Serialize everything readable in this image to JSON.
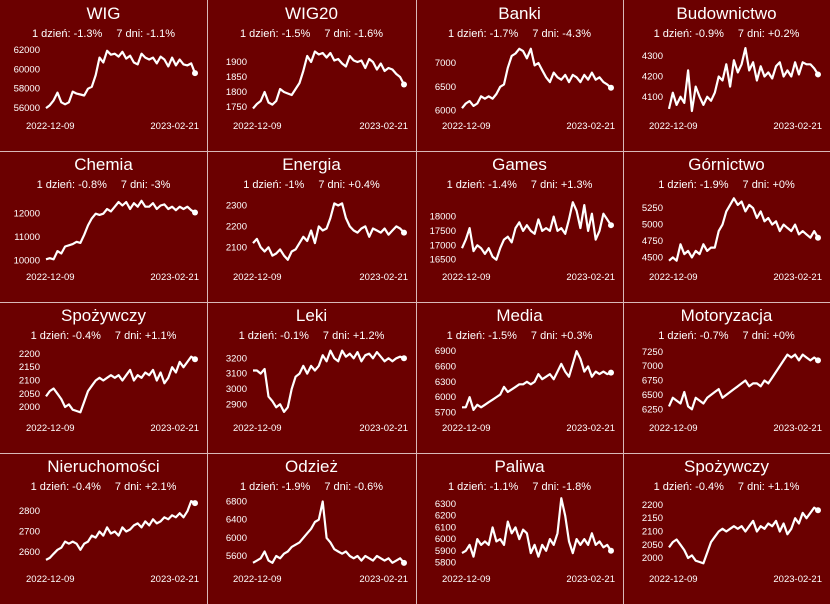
{
  "colors": {
    "background": "#6b0000",
    "line": "#ffffff",
    "separator": "#d9b8b8"
  },
  "chart_data": [
    {
      "type": "line",
      "title": "WIG",
      "day1": "1 dzień: -1.3%",
      "day7": "7 dni: -1.1%",
      "x_start": "2022-12-09",
      "x_end": "2023-02-21",
      "yticks": [
        56000,
        58000,
        60000,
        62000
      ],
      "ylim": [
        55500,
        62600
      ],
      "values": [
        56000,
        56300,
        56800,
        57600,
        56600,
        56400,
        56600,
        57700,
        57500,
        57400,
        57300,
        58000,
        58200,
        59400,
        61200,
        60700,
        61900,
        61500,
        61600,
        61300,
        61800,
        61100,
        61400,
        60700,
        60500,
        61600,
        61200,
        61000,
        61200,
        60600,
        61300,
        61000,
        60300,
        61200,
        60400,
        61000,
        60500,
        60400,
        60600,
        59600
      ]
    },
    {
      "type": "line",
      "title": "WIG20",
      "day1": "1 dzień: -1.5%",
      "day7": "7 dni: -1.6%",
      "x_start": "2022-12-09",
      "x_end": "2023-02-21",
      "yticks": [
        1750,
        1800,
        1850,
        1900
      ],
      "ylim": [
        1730,
        1960
      ],
      "values": [
        1745,
        1760,
        1770,
        1800,
        1765,
        1758,
        1770,
        1810,
        1800,
        1795,
        1790,
        1810,
        1830,
        1870,
        1920,
        1900,
        1935,
        1925,
        1930,
        1915,
        1930,
        1905,
        1910,
        1895,
        1885,
        1920,
        1905,
        1900,
        1905,
        1880,
        1910,
        1900,
        1875,
        1895,
        1870,
        1880,
        1875,
        1860,
        1850,
        1825
      ]
    },
    {
      "type": "line",
      "title": "Banki",
      "day1": "1 dzień: -1.7%",
      "day7": "7 dni: -4.3%",
      "x_start": "2022-12-09",
      "x_end": "2023-02-21",
      "yticks": [
        6000,
        6500,
        7000
      ],
      "ylim": [
        5950,
        7400
      ],
      "values": [
        6050,
        6150,
        6200,
        6100,
        6150,
        6300,
        6250,
        6300,
        6250,
        6350,
        6500,
        6550,
        6900,
        7150,
        7200,
        7300,
        7250,
        7100,
        7300,
        6950,
        7000,
        6850,
        6700,
        6600,
        6800,
        6700,
        6650,
        6750,
        6600,
        6750,
        6700,
        6600,
        6750,
        6650,
        6800,
        6650,
        6700,
        6600,
        6550,
        6480
      ]
    },
    {
      "type": "line",
      "title": "Budownictwo",
      "day1": "1 dzień: -0.9%",
      "day7": "7 dni: +0.2%",
      "x_start": "2022-12-09",
      "x_end": "2023-02-21",
      "yticks": [
        4100,
        4200,
        4300
      ],
      "ylim": [
        4020,
        4360
      ],
      "values": [
        4040,
        4120,
        4060,
        4100,
        4070,
        4230,
        4030,
        4150,
        4100,
        4060,
        4100,
        4080,
        4120,
        4200,
        4180,
        4260,
        4150,
        4280,
        4220,
        4260,
        4340,
        4230,
        4270,
        4180,
        4250,
        4200,
        4220,
        4190,
        4250,
        4270,
        4200,
        4230,
        4200,
        4270,
        4210,
        4270,
        4260,
        4260,
        4240,
        4210
      ]
    },
    {
      "type": "line",
      "title": "Chemia",
      "day1": "1 dzień: -0.8%",
      "day7": "7 dni: -3%",
      "x_start": "2022-12-09",
      "x_end": "2023-02-21",
      "yticks": [
        10000,
        11000,
        12000
      ],
      "ylim": [
        9850,
        12800
      ],
      "values": [
        10050,
        10100,
        10050,
        10400,
        10300,
        10600,
        10650,
        10700,
        10800,
        10750,
        11100,
        11500,
        11800,
        12000,
        11950,
        12000,
        12200,
        12100,
        12300,
        12500,
        12350,
        12500,
        12200,
        12450,
        12300,
        12550,
        12300,
        12300,
        12450,
        12200,
        12350,
        12400,
        12200,
        12300,
        12150,
        12300,
        12200,
        12300,
        12150,
        12050
      ]
    },
    {
      "type": "line",
      "title": "Energia",
      "day1": "1 dzień: -1%",
      "day7": "7 dni: +0.4%",
      "x_start": "2022-12-09",
      "x_end": "2023-02-21",
      "yticks": [
        2100,
        2200,
        2300
      ],
      "ylim": [
        2020,
        2350
      ],
      "values": [
        2120,
        2140,
        2100,
        2080,
        2100,
        2060,
        2070,
        2090,
        2060,
        2040,
        2080,
        2090,
        2120,
        2150,
        2130,
        2180,
        2120,
        2200,
        2180,
        2190,
        2240,
        2310,
        2300,
        2310,
        2240,
        2200,
        2180,
        2170,
        2190,
        2200,
        2150,
        2190,
        2180,
        2170,
        2190,
        2160,
        2180,
        2200,
        2190,
        2170
      ]
    },
    {
      "type": "line",
      "title": "Games",
      "day1": "1 dzień: -1.4%",
      "day7": "7 dni: +1.3%",
      "x_start": "2022-12-09",
      "x_end": "2023-02-21",
      "yticks": [
        16500,
        17000,
        17500,
        18000
      ],
      "ylim": [
        16350,
        18750
      ],
      "values": [
        16900,
        17200,
        17600,
        16800,
        17000,
        16900,
        16700,
        16900,
        16600,
        16500,
        16900,
        17200,
        17300,
        17100,
        17600,
        17800,
        17500,
        17700,
        17500,
        17400,
        17900,
        17500,
        17600,
        17500,
        18000,
        17500,
        17600,
        17400,
        17900,
        18500,
        18200,
        17600,
        18400,
        17500,
        18100,
        17200,
        17500,
        18100,
        17900,
        17700
      ]
    },
    {
      "type": "line",
      "title": "Górnictwo",
      "day1": "1 dzień: -1.9%",
      "day7": "7 dni: +0%",
      "x_start": "2022-12-09",
      "x_end": "2023-02-21",
      "yticks": [
        4500,
        4750,
        5000,
        5250
      ],
      "ylim": [
        4400,
        5450
      ],
      "values": [
        4450,
        4500,
        4450,
        4700,
        4550,
        4600,
        4500,
        4600,
        4550,
        4700,
        4600,
        4650,
        4650,
        4900,
        5000,
        5200,
        5300,
        5400,
        5300,
        5350,
        5200,
        5300,
        5250,
        5100,
        5200,
        5050,
        5100,
        5000,
        5050,
        4900,
        5000,
        4950,
        4900,
        5000,
        4850,
        4900,
        4850,
        4800,
        4900,
        4800
      ]
    },
    {
      "type": "line",
      "title": "Spożywczy",
      "day1": "1 dzień: -0.4%",
      "day7": "7 dni: +1.1%",
      "x_start": "2022-12-09",
      "x_end": "2023-02-21",
      "yticks": [
        2000,
        2050,
        2100,
        2150,
        2200
      ],
      "ylim": [
        1970,
        2230
      ],
      "values": [
        2040,
        2060,
        2070,
        2050,
        2030,
        2000,
        2010,
        1990,
        1985,
        1980,
        2020,
        2060,
        2080,
        2100,
        2110,
        2100,
        2110,
        2120,
        2110,
        2120,
        2100,
        2120,
        2140,
        2100,
        2120,
        2110,
        2130,
        2120,
        2140,
        2100,
        2130,
        2090,
        2110,
        2150,
        2130,
        2170,
        2150,
        2170,
        2190,
        2180
      ]
    },
    {
      "type": "line",
      "title": "Leki",
      "day1": "1 dzień: -0.1%",
      "day7": "7 dni: +1.2%",
      "x_start": "2022-12-09",
      "x_end": "2023-02-21",
      "yticks": [
        2900,
        3000,
        3100,
        3200
      ],
      "ylim": [
        2830,
        3280
      ],
      "values": [
        3120,
        3120,
        3100,
        3130,
        2950,
        2920,
        2880,
        2900,
        2850,
        2880,
        3000,
        3080,
        3100,
        3150,
        3100,
        3150,
        3120,
        3150,
        3220,
        3180,
        3250,
        3200,
        3180,
        3250,
        3210,
        3230,
        3200,
        3240,
        3180,
        3220,
        3230,
        3200,
        3240,
        3210,
        3180,
        3200,
        3180,
        3200,
        3210,
        3200
      ]
    },
    {
      "type": "line",
      "title": "Media",
      "day1": "1 dzień: -1.5%",
      "day7": "7 dni: +0.3%",
      "x_start": "2022-12-09",
      "x_end": "2023-02-21",
      "yticks": [
        5700,
        6000,
        6300,
        6600,
        6900
      ],
      "ylim": [
        5650,
        7000
      ],
      "values": [
        5800,
        5800,
        6000,
        5750,
        5850,
        5800,
        5850,
        5900,
        5950,
        6000,
        6050,
        6200,
        6100,
        6150,
        6200,
        6250,
        6250,
        6300,
        6250,
        6300,
        6450,
        6350,
        6400,
        6450,
        6350,
        6500,
        6650,
        6500,
        6400,
        6650,
        6900,
        6750,
        6500,
        6600,
        6400,
        6500,
        6450,
        6500,
        6450,
        6480
      ]
    },
    {
      "type": "line",
      "title": "Motoryzacja",
      "day1": "1 dzień: -0.7%",
      "day7": "7 dni: +0%",
      "x_start": "2022-12-09",
      "x_end": "2023-02-21",
      "yticks": [
        6250,
        6500,
        6750,
        7000,
        7250
      ],
      "ylim": [
        6150,
        7350
      ],
      "values": [
        6300,
        6450,
        6400,
        6350,
        6550,
        6300,
        6250,
        6450,
        6400,
        6350,
        6450,
        6500,
        6550,
        6600,
        6450,
        6500,
        6550,
        6600,
        6650,
        6700,
        6750,
        6650,
        6700,
        6700,
        6650,
        6750,
        6700,
        6800,
        6900,
        7000,
        7100,
        7200,
        7150,
        7200,
        7100,
        7200,
        7150,
        7100,
        7150,
        7100
      ]
    },
    {
      "type": "line",
      "title": "Nieruchomości",
      "day1": "1 dzień: -0.4%",
      "day7": "7 dni: +2.1%",
      "x_start": "2022-12-09",
      "x_end": "2023-02-21",
      "yticks": [
        2600,
        2700,
        2800
      ],
      "ylim": [
        2530,
        2870
      ],
      "values": [
        2560,
        2570,
        2590,
        2610,
        2620,
        2650,
        2640,
        2650,
        2640,
        2610,
        2640,
        2650,
        2680,
        2670,
        2700,
        2680,
        2720,
        2690,
        2700,
        2680,
        2720,
        2700,
        2710,
        2730,
        2740,
        2720,
        2750,
        2730,
        2760,
        2740,
        2750,
        2770,
        2760,
        2780,
        2770,
        2790,
        2770,
        2800,
        2850,
        2840
      ]
    },
    {
      "type": "line",
      "title": "Odzież",
      "day1": "1 dzień: -1.9%",
      "day7": "7 dni: -0.6%",
      "x_start": "2022-12-09",
      "x_end": "2023-02-21",
      "yticks": [
        5600,
        6000,
        6400,
        6800
      ],
      "ylim": [
        5380,
        6900
      ],
      "values": [
        5450,
        5500,
        5550,
        5700,
        5500,
        5450,
        5600,
        5550,
        5650,
        5700,
        5800,
        5850,
        5900,
        6000,
        6100,
        6200,
        6350,
        6400,
        6800,
        6000,
        5900,
        5750,
        5700,
        5650,
        5700,
        5600,
        5550,
        5600,
        5500,
        5600,
        5550,
        5500,
        5600,
        5550,
        5500,
        5550,
        5450,
        5500,
        5550,
        5450
      ]
    },
    {
      "type": "line",
      "title": "Paliwa",
      "day1": "1 dzień: -1.1%",
      "day7": "7 dni: -1.8%",
      "x_start": "2022-12-09",
      "x_end": "2023-02-21",
      "yticks": [
        5800,
        5900,
        6000,
        6100,
        6200,
        6300
      ],
      "ylim": [
        5770,
        6360
      ],
      "values": [
        5880,
        5900,
        5950,
        5850,
        6000,
        5950,
        5980,
        5950,
        6100,
        5980,
        6000,
        5950,
        6150,
        6050,
        6100,
        6000,
        6080,
        6050,
        5880,
        5950,
        5850,
        5950,
        5900,
        6000,
        5950,
        6050,
        6350,
        6200,
        5980,
        5880,
        6000,
        5950,
        6000,
        5950,
        6050,
        5950,
        5980,
        5930,
        5950,
        5900
      ]
    },
    {
      "type": "line",
      "title": "Spożywczy",
      "day1": "1 dzień: -0.4%",
      "day7": "7 dni: +1.1%",
      "x_start": "2022-12-09",
      "x_end": "2023-02-21",
      "yticks": [
        2000,
        2050,
        2100,
        2150,
        2200
      ],
      "ylim": [
        1970,
        2230
      ],
      "values": [
        2040,
        2060,
        2070,
        2050,
        2030,
        2000,
        2010,
        1990,
        1985,
        1980,
        2020,
        2060,
        2080,
        2100,
        2110,
        2100,
        2110,
        2120,
        2110,
        2120,
        2100,
        2120,
        2140,
        2100,
        2120,
        2110,
        2130,
        2120,
        2140,
        2100,
        2130,
        2090,
        2110,
        2150,
        2130,
        2170,
        2150,
        2170,
        2190,
        2180
      ]
    }
  ]
}
